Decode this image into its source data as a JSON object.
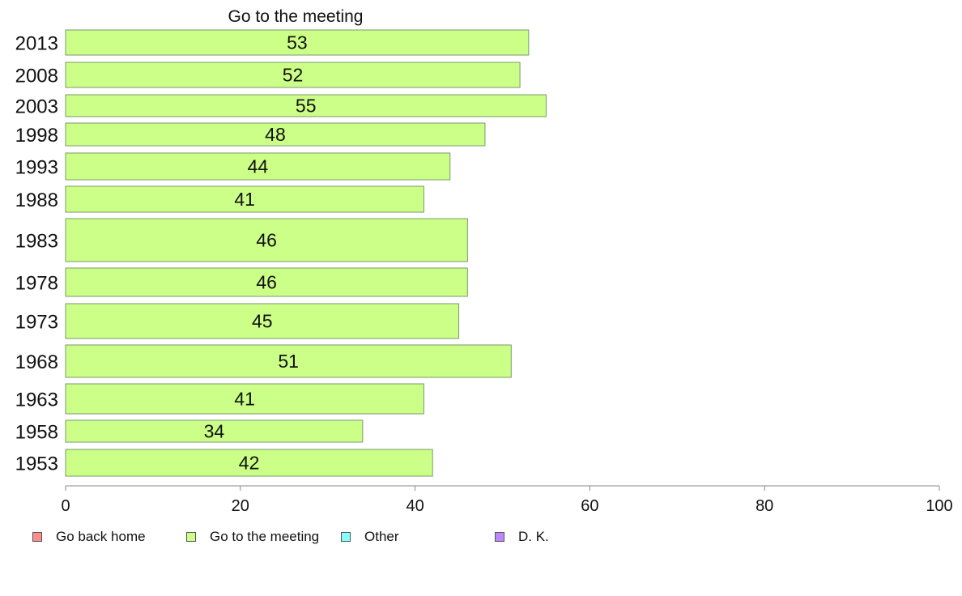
{
  "chart_data": {
    "type": "bar",
    "orientation": "horizontal",
    "title": "Go to the meeting",
    "categories": [
      "2013",
      "2008",
      "2003",
      "1998",
      "1993",
      "1988",
      "1983",
      "1978",
      "1973",
      "1968",
      "1963",
      "1958",
      "1953"
    ],
    "series": [
      {
        "name": "Go to the meeting",
        "values": [
          53,
          52,
          55,
          48,
          44,
          41,
          46,
          46,
          45,
          51,
          41,
          34,
          42
        ],
        "color": "#ccff88"
      }
    ],
    "xlim": [
      0,
      100
    ],
    "x_ticks": [
      0,
      20,
      40,
      60,
      80,
      100
    ],
    "grid": false,
    "legend_placement": "bottom",
    "legend": [
      {
        "label": "Go back home",
        "color": "#ff8c8c"
      },
      {
        "label": "Go to the meeting",
        "color": "#ccff88"
      },
      {
        "label": "Other",
        "color": "#88ffff"
      },
      {
        "label": "D. K.",
        "color": "#bb88ff"
      }
    ]
  }
}
